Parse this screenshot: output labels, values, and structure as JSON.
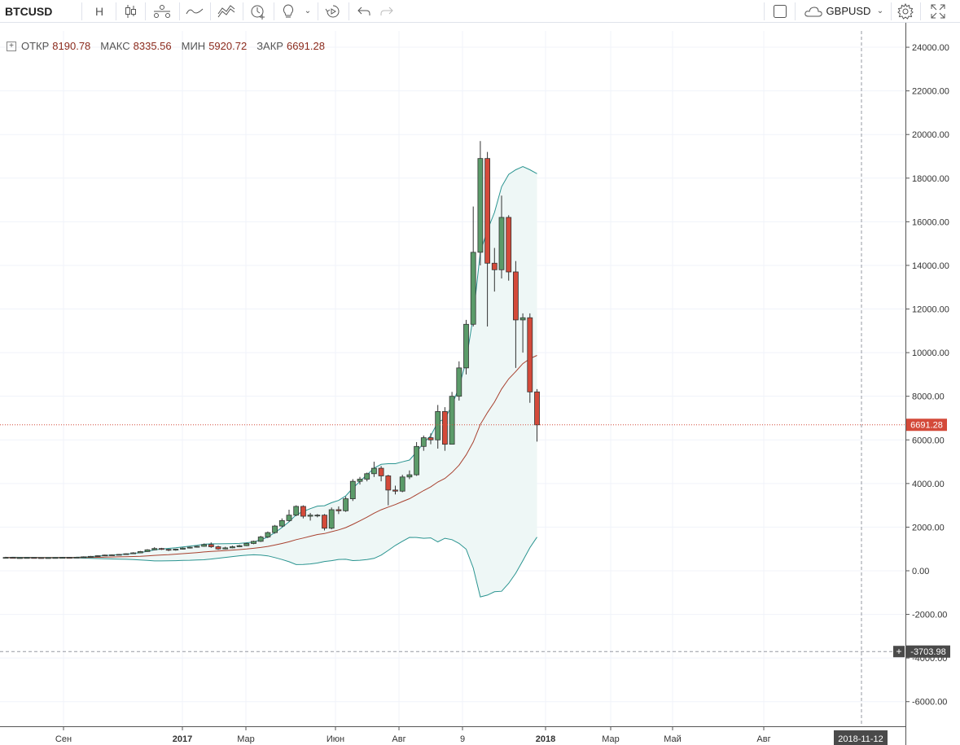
{
  "toolbar": {
    "symbol": "BTCUSD",
    "interval": "Н",
    "compare_symbol": "GBPUSD"
  },
  "legend": {
    "open_label": "ОТКР",
    "open": "8190.78",
    "high_label": "МАКС",
    "high": "8335.56",
    "low_label": "МИН",
    "low": "5920.72",
    "close_label": "ЗАКР",
    "close": "6691.28"
  },
  "colors": {
    "up": "#5b9b69",
    "down": "#d44a3a",
    "band": "#2a9490",
    "band_fill": "#eef7f6",
    "basis": "#a8412f",
    "price_line": "#d44a3a"
  },
  "chart_data": {
    "type": "candlestick",
    "y_ticks": [
      "24000.00",
      "22000.00",
      "20000.00",
      "18000.00",
      "16000.00",
      "14000.00",
      "12000.00",
      "10000.00",
      "8000.00",
      "6000.00",
      "4000.00",
      "2000.00",
      "0.00",
      "-2000.00",
      "-4000.00",
      "-6000.00"
    ],
    "x_ticks": [
      "Сен",
      "2017",
      "Мар",
      "Июн",
      "Авг",
      "9",
      "2018",
      "Мар",
      "Май",
      "Авг"
    ],
    "price_label": "6691.28",
    "crosshair_y_label": "-3703.98",
    "crosshair_x_label": "2018-11-12",
    "ylim": [
      -7000,
      24300
    ],
    "indicator": "Bollinger Bands (upper, basis, lower)"
  }
}
